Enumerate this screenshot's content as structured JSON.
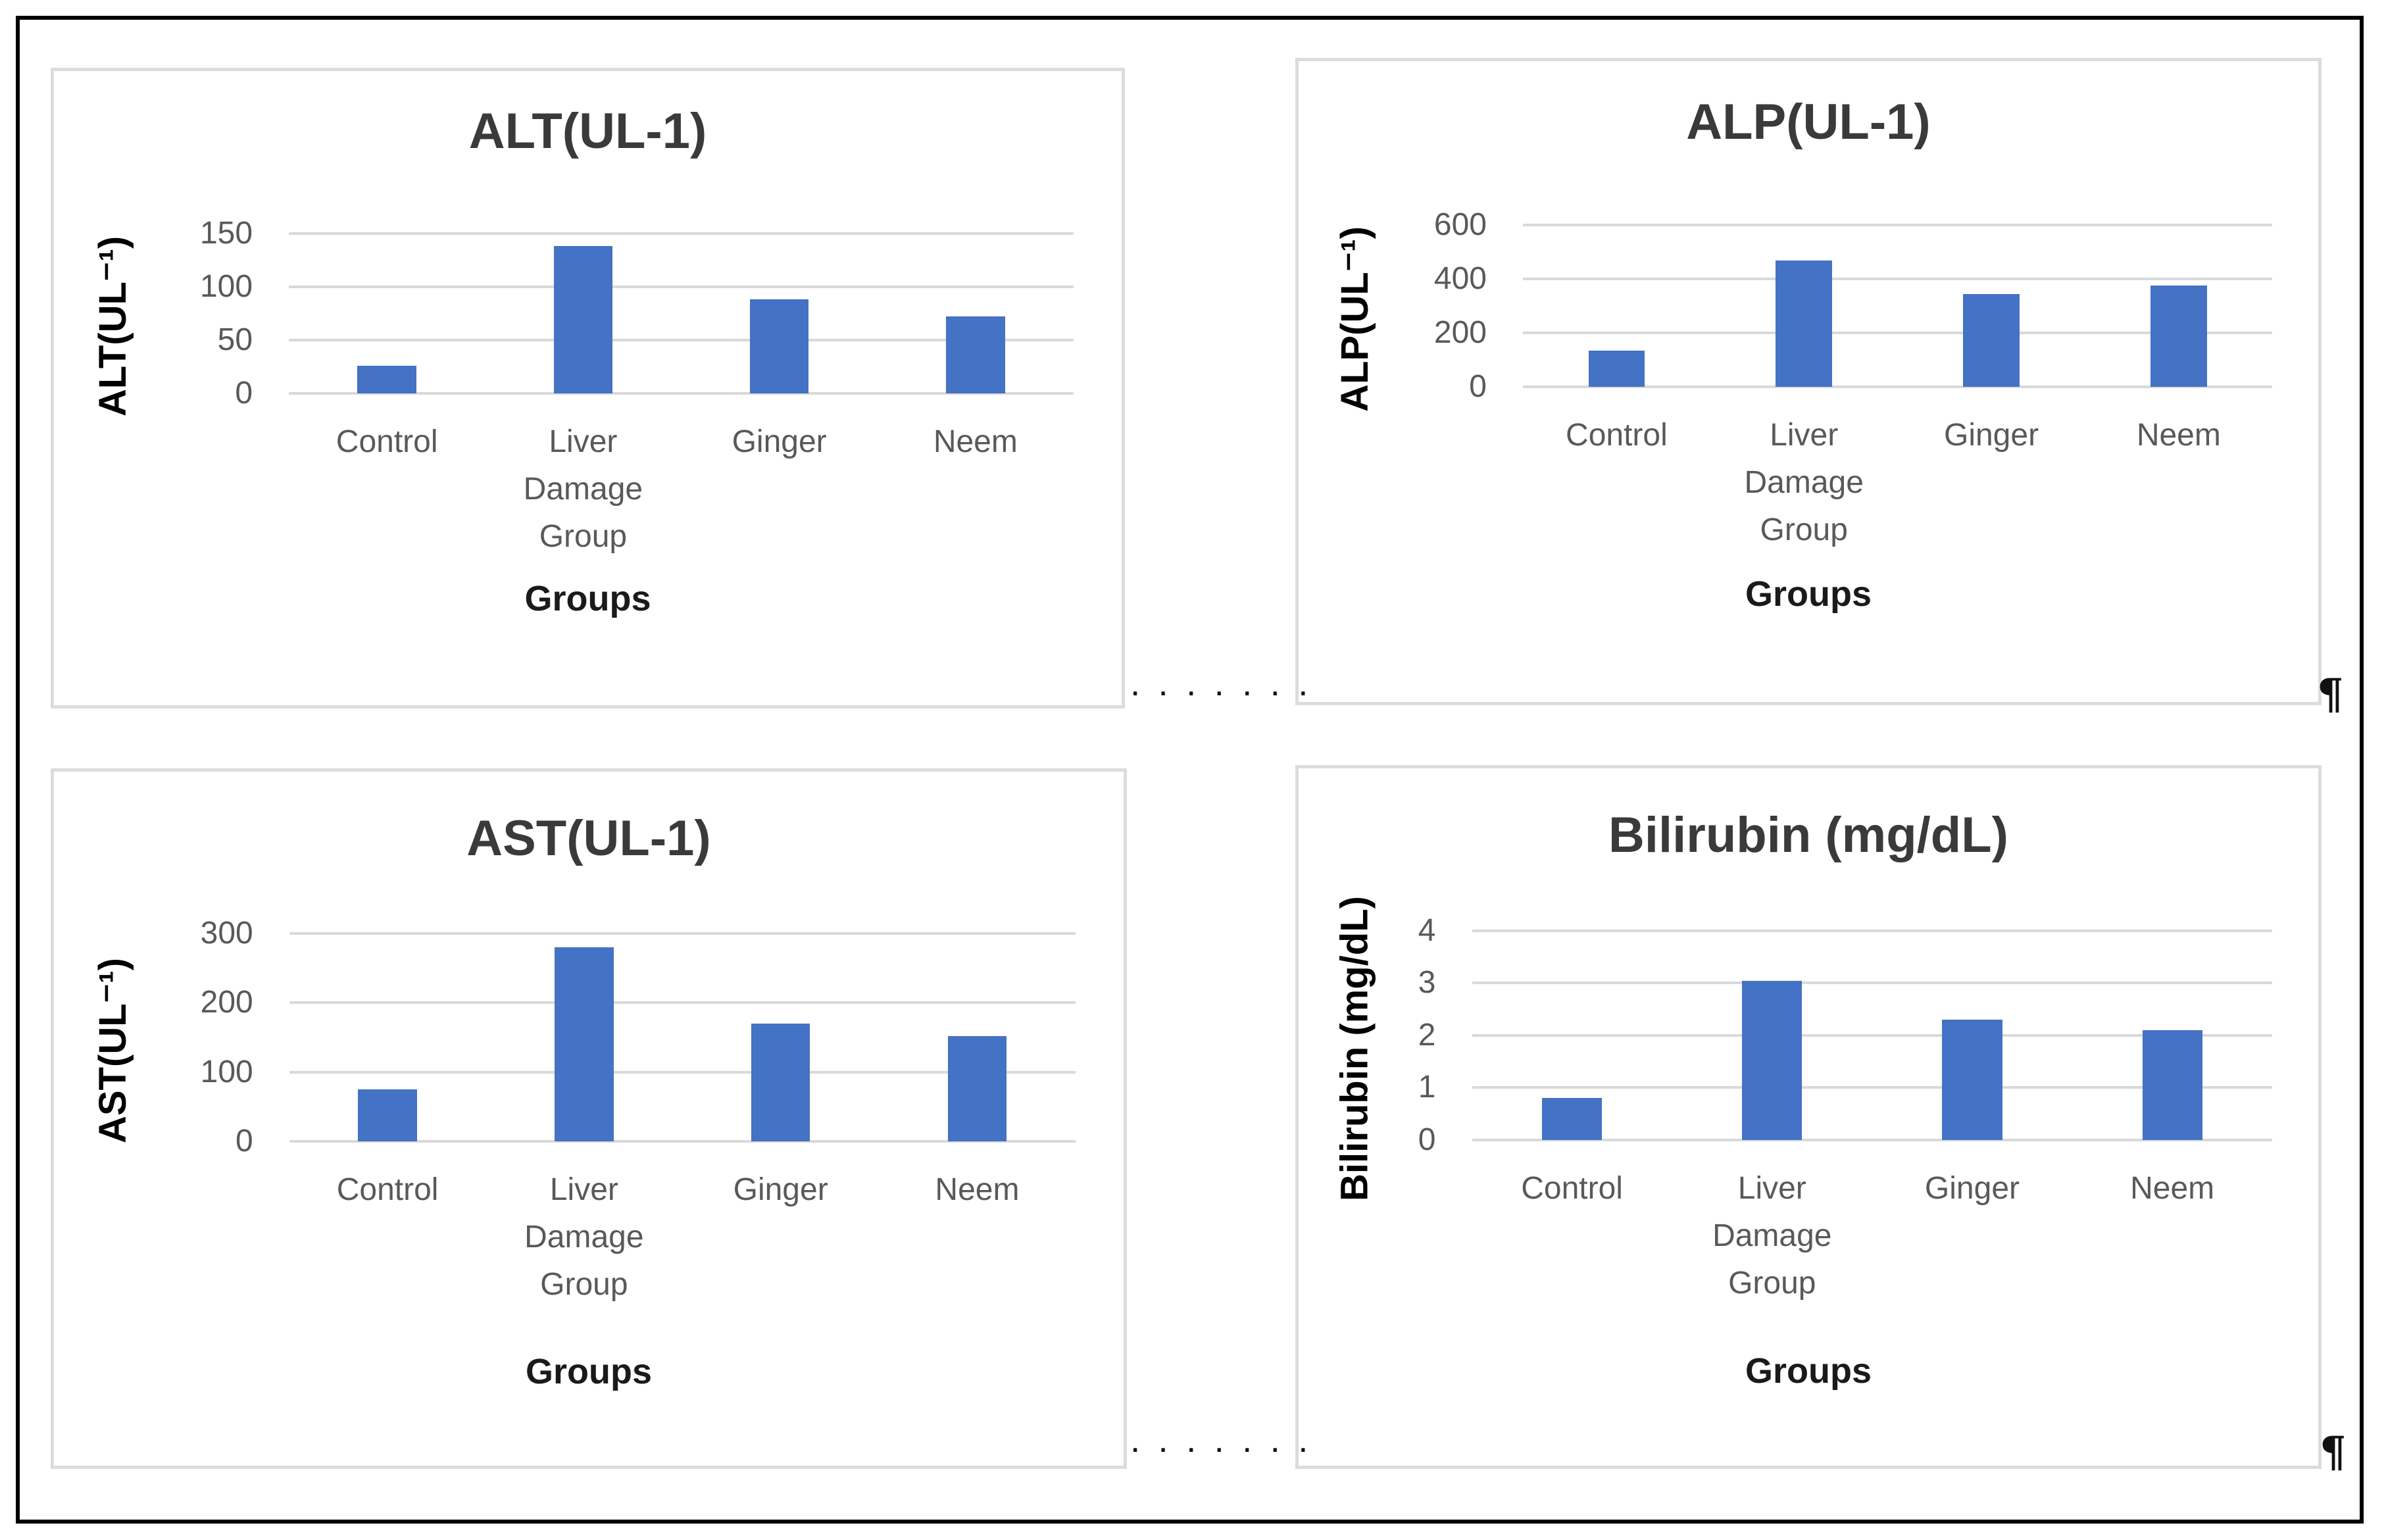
{
  "page": {
    "pilcrow": "¶",
    "separator_dots": ". . . . . . .",
    "background": "#ffffff",
    "border_color": "#000000"
  },
  "styles": {
    "bar_color": "#4472c4",
    "grid_color": "#d9d9d9",
    "tick_label_color": "#595959",
    "category_label_color": "#595959",
    "chart_title_color": "#3a3a3a",
    "axis_title_color": "#000000",
    "panel_border_color": "#dcdcdc"
  },
  "chart_data": [
    {
      "type": "bar",
      "title": "ALT(UL-1)",
      "y_axis_title": "ALT(UL⁻¹)",
      "x_axis_title": "Groups",
      "categories": [
        "Control",
        "Liver Damage Group",
        "Ginger",
        "Neem"
      ],
      "values": [
        26,
        138,
        88,
        72
      ],
      "ylim": [
        0,
        150
      ],
      "yticks": [
        0,
        50,
        100,
        150
      ],
      "grid": true,
      "legend": "none"
    },
    {
      "type": "bar",
      "title": "ALP(UL-1)",
      "y_axis_title": "ALP(UL⁻¹)",
      "x_axis_title": "Groups",
      "categories": [
        "Control",
        "Liver Damage Group",
        "Ginger",
        "Neem"
      ],
      "values": [
        135,
        470,
        345,
        375
      ],
      "ylim": [
        0,
        600
      ],
      "yticks": [
        0,
        200,
        400,
        600
      ],
      "grid": true,
      "legend": "none"
    },
    {
      "type": "bar",
      "title": "AST(UL-1)",
      "y_axis_title": "AST(UL⁻¹)",
      "x_axis_title": "Groups",
      "categories": [
        "Control",
        "Liver Damage Group",
        "Ginger",
        "Neem"
      ],
      "values": [
        75,
        280,
        170,
        152
      ],
      "ylim": [
        0,
        300
      ],
      "yticks": [
        0,
        100,
        200,
        300
      ],
      "grid": true,
      "legend": "none"
    },
    {
      "type": "bar",
      "title": "Bilirubin (mg/dL)",
      "y_axis_title": "Bilirubin (mg/dL)",
      "x_axis_title": "Groups",
      "categories": [
        "Control",
        "Liver Damage Group",
        "Ginger",
        "Neem"
      ],
      "values": [
        0.8,
        3.05,
        2.3,
        2.1
      ],
      "ylim": [
        0,
        4
      ],
      "yticks": [
        0,
        1,
        2,
        3,
        4
      ],
      "grid": true,
      "legend": "none"
    }
  ]
}
